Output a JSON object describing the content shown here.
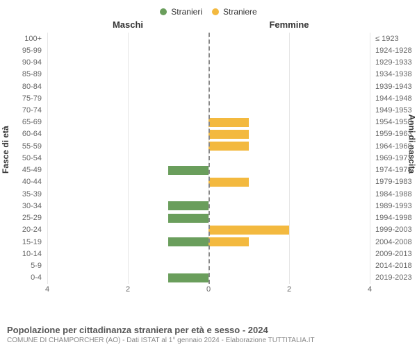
{
  "legend": {
    "male": {
      "label": "Stranieri",
      "color": "#6a9e5c"
    },
    "female": {
      "label": "Straniere",
      "color": "#f3b93f"
    }
  },
  "headers": {
    "male": "Maschi",
    "female": "Femmine"
  },
  "axis": {
    "left_title": "Fasce di età",
    "right_title": "Anni di nascita",
    "x_max": 4,
    "x_ticks": [
      4,
      2,
      0,
      2,
      4
    ]
  },
  "style": {
    "background_color": "#ffffff",
    "grid_color": "#e6e6e6",
    "center_line_color": "#888888",
    "tick_font_size": 11,
    "label_color": "#666666"
  },
  "rows": [
    {
      "age": "100+",
      "year": "≤ 1923",
      "m": 0,
      "f": 0
    },
    {
      "age": "95-99",
      "year": "1924-1928",
      "m": 0,
      "f": 0
    },
    {
      "age": "90-94",
      "year": "1929-1933",
      "m": 0,
      "f": 0
    },
    {
      "age": "85-89",
      "year": "1934-1938",
      "m": 0,
      "f": 0
    },
    {
      "age": "80-84",
      "year": "1939-1943",
      "m": 0,
      "f": 0
    },
    {
      "age": "75-79",
      "year": "1944-1948",
      "m": 0,
      "f": 0
    },
    {
      "age": "70-74",
      "year": "1949-1953",
      "m": 0,
      "f": 0
    },
    {
      "age": "65-69",
      "year": "1954-1958",
      "m": 0,
      "f": 1
    },
    {
      "age": "60-64",
      "year": "1959-1963",
      "m": 0,
      "f": 1
    },
    {
      "age": "55-59",
      "year": "1964-1968",
      "m": 0,
      "f": 1
    },
    {
      "age": "50-54",
      "year": "1969-1973",
      "m": 0,
      "f": 0
    },
    {
      "age": "45-49",
      "year": "1974-1978",
      "m": 1,
      "f": 0
    },
    {
      "age": "40-44",
      "year": "1979-1983",
      "m": 0,
      "f": 1
    },
    {
      "age": "35-39",
      "year": "1984-1988",
      "m": 0,
      "f": 0
    },
    {
      "age": "30-34",
      "year": "1989-1993",
      "m": 1,
      "f": 0
    },
    {
      "age": "25-29",
      "year": "1994-1998",
      "m": 1,
      "f": 0
    },
    {
      "age": "20-24",
      "year": "1999-2003",
      "m": 0,
      "f": 2
    },
    {
      "age": "15-19",
      "year": "2004-2008",
      "m": 1,
      "f": 1
    },
    {
      "age": "10-14",
      "year": "2009-2013",
      "m": 0,
      "f": 0
    },
    {
      "age": "5-9",
      "year": "2014-2018",
      "m": 0,
      "f": 0
    },
    {
      "age": "0-4",
      "year": "2019-2023",
      "m": 1,
      "f": 0
    }
  ],
  "footer": {
    "title": "Popolazione per cittadinanza straniera per età e sesso - 2024",
    "subtitle": "COMUNE DI CHAMPORCHER (AO) - Dati ISTAT al 1° gennaio 2024 - Elaborazione TUTTITALIA.IT"
  }
}
